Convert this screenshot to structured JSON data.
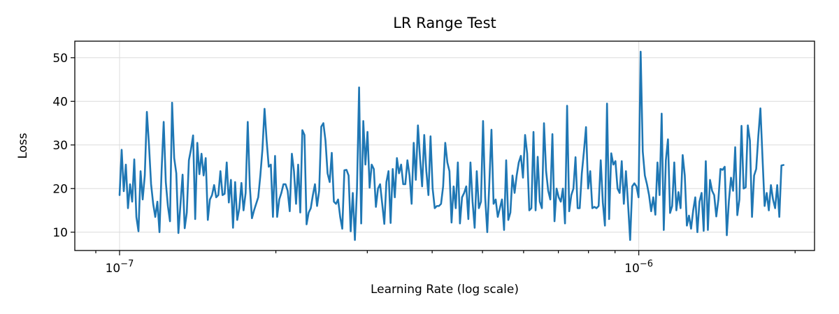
{
  "chart_data": {
    "type": "line",
    "title": "LR Range Test",
    "xlabel": "Learning Rate (log scale)",
    "ylabel": "Loss",
    "xscale": "log",
    "xlim": [
      8.2e-08,
      2.18e-06
    ],
    "ylim": [
      5.8,
      53.8
    ],
    "grid": true,
    "legend": "none",
    "x_major_ticks": [
      {
        "value": 1e-07,
        "base": "10",
        "exponent": "−7"
      },
      {
        "value": 1e-06,
        "base": "10",
        "exponent": "−6"
      }
    ],
    "y_ticks": [
      {
        "value": 10,
        "label": "10"
      },
      {
        "value": 20,
        "label": "20"
      },
      {
        "value": 30,
        "label": "30"
      },
      {
        "value": 40,
        "label": "40"
      },
      {
        "value": 50,
        "label": "50"
      }
    ],
    "series": [
      {
        "color": "#1f77b4",
        "x_start": 1e-07,
        "x_end": 1.9e-06,
        "y": [
          18.5,
          28.9,
          19.4,
          25.5,
          15.5,
          21.0,
          17.0,
          26.7,
          13.5,
          10.2,
          24.0,
          17.5,
          23.0,
          37.6,
          30.0,
          21.0,
          16.5,
          13.5,
          17.0,
          10.0,
          24.0,
          35.3,
          21.5,
          16.0,
          12.5,
          39.7,
          27.0,
          23.5,
          9.8,
          16.5,
          23.2,
          10.9,
          14.5,
          26.5,
          29.0,
          32.2,
          13.0,
          30.5,
          23.3,
          28.0,
          23.0,
          27.0,
          12.8,
          17.5,
          18.5,
          20.8,
          18.0,
          18.5,
          24.0,
          18.5,
          18.8,
          26.0,
          16.8,
          22.0,
          11.0,
          21.5,
          12.8,
          15.5,
          21.3,
          15.0,
          19.0,
          35.3,
          20.5,
          13.2,
          15.0,
          16.5,
          18.0,
          23.0,
          29.0,
          38.3,
          31.0,
          25.0,
          25.5,
          13.5,
          27.5,
          13.5,
          17.5,
          19.0,
          21.0,
          21.0,
          19.5,
          14.8,
          28.0,
          24.0,
          16.5,
          25.5,
          14.5,
          33.4,
          32.3,
          11.8,
          14.5,
          15.5,
          18.5,
          21.0,
          16.0,
          19.5,
          34.2,
          35.0,
          31.0,
          23.5,
          21.5,
          28.2,
          17.0,
          16.5,
          17.5,
          13.5,
          10.8,
          24.2,
          24.3,
          23.0,
          10.2,
          19.0,
          8.2,
          20.0,
          43.2,
          12.0,
          35.5,
          25.5,
          33.0,
          20.2,
          25.5,
          24.5,
          15.8,
          20.0,
          21.0,
          16.5,
          11.9,
          21.5,
          24.0,
          12.1,
          24.5,
          18.0,
          27.0,
          23.5,
          25.5,
          21.0,
          21.0,
          26.5,
          23.0,
          16.5,
          30.5,
          22.0,
          34.5,
          27.0,
          20.5,
          32.3,
          24.0,
          18.5,
          32.0,
          20.0,
          15.5,
          16.0,
          16.0,
          16.5,
          20.5,
          30.5,
          26.0,
          24.0,
          12.2,
          20.5,
          15.5,
          26.0,
          12.0,
          18.0,
          19.0,
          20.5,
          13.0,
          26.0,
          17.0,
          11.0,
          24.0,
          15.5,
          17.0,
          35.5,
          18.0,
          10.0,
          21.5,
          33.5,
          16.5,
          17.5,
          13.5,
          15.5,
          17.5,
          10.5,
          26.5,
          12.8,
          14.5,
          23.0,
          19.0,
          23.0,
          26.0,
          27.5,
          22.5,
          32.3,
          28.0,
          15.0,
          15.5,
          33.0,
          15.0,
          27.3,
          17.0,
          15.5,
          35.0,
          24.0,
          19.5,
          17.5,
          32.5,
          12.5,
          20.0,
          18.0,
          17.0,
          20.0,
          12.0,
          39.0,
          14.8,
          18.5,
          20.0,
          27.2,
          15.5,
          15.5,
          23.5,
          28.5,
          34.1,
          20.0,
          24.0,
          15.5,
          15.8,
          15.5,
          16.0,
          26.5,
          16.8,
          11.5,
          39.5,
          13.0,
          28.1,
          25.5,
          26.3,
          20.0,
          19.0,
          26.3,
          16.5,
          24.0,
          16.5,
          8.2,
          20.5,
          21.2,
          20.5,
          18.0,
          51.4,
          28.5,
          23.0,
          21.0,
          18.5,
          14.8,
          18.0,
          14.0,
          26.0,
          18.5,
          37.2,
          10.5,
          26.5,
          31.3,
          14.4,
          16.0,
          26.0,
          15.0,
          19.2,
          15.5,
          27.7,
          23.0,
          11.5,
          13.8,
          10.8,
          15.0,
          18.0,
          10.0,
          17.0,
          19.0,
          10.3,
          26.3,
          10.5,
          22.0,
          19.5,
          18.5,
          13.6,
          17.5,
          24.5,
          24.3,
          25.0,
          9.3,
          17.2,
          22.5,
          19.5,
          29.5,
          13.9,
          17.5,
          34.4,
          20.0,
          20.3,
          34.5,
          31.0,
          13.5,
          23.0,
          24.5,
          32.0,
          38.4,
          27.0,
          16.0,
          19.0,
          15.0,
          20.8,
          17.5,
          15.5,
          20.8,
          13.5,
          25.3,
          25.4
        ]
      }
    ]
  }
}
